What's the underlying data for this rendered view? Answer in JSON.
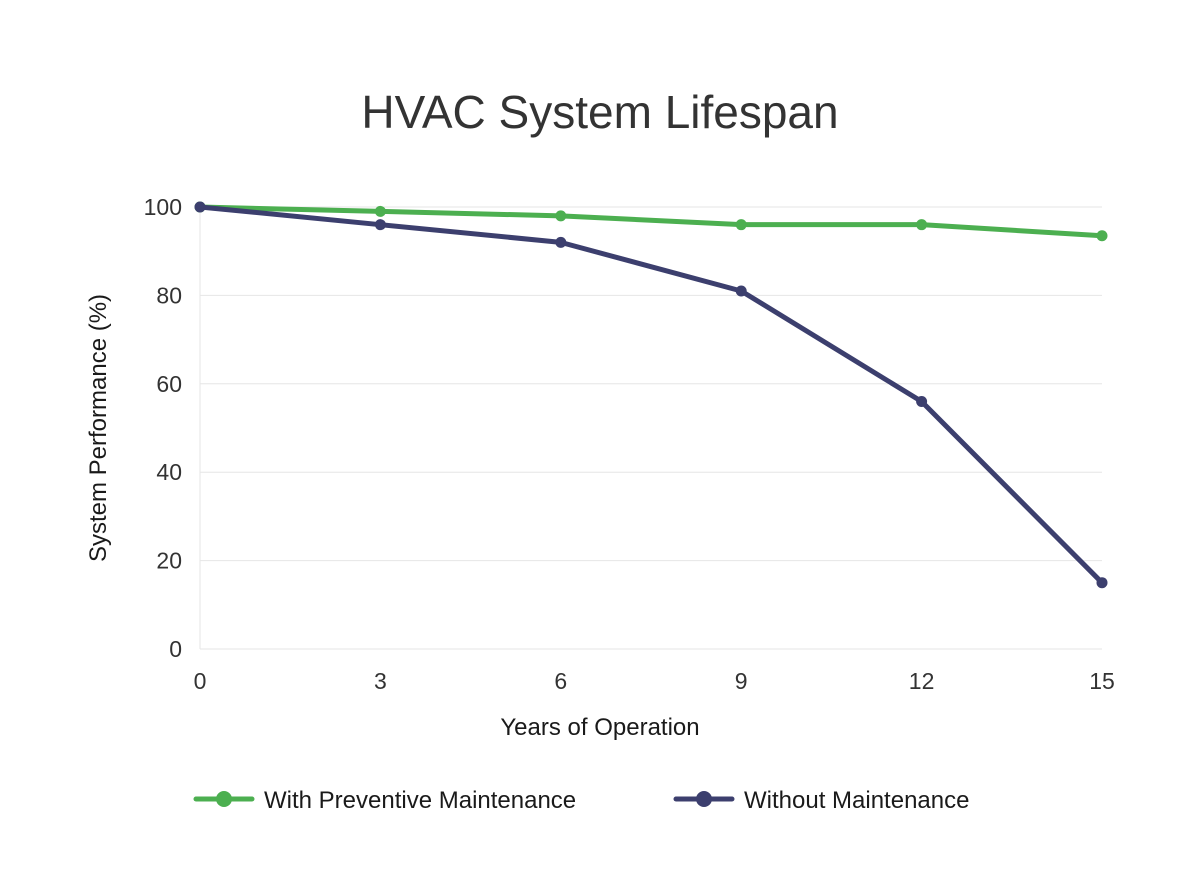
{
  "chart_data": {
    "type": "line",
    "title": "HVAC System Lifespan",
    "xlabel": "Years of Operation",
    "ylabel": "System Performance (%)",
    "x": [
      0,
      3,
      6,
      9,
      12,
      15
    ],
    "xlim": [
      0,
      15
    ],
    "ylim": [
      0,
      100
    ],
    "xticks": [
      "0",
      "3",
      "6",
      "9",
      "12",
      "15"
    ],
    "yticks": [
      "0",
      "20",
      "40",
      "60",
      "80",
      "100"
    ],
    "grid": "horizontal",
    "legend_position": "bottom",
    "series": [
      {
        "name": "With Preventive Maintenance",
        "color": "#4caf50",
        "values": [
          100,
          99,
          98,
          96,
          96,
          93.5
        ]
      },
      {
        "name": "Without Maintenance",
        "color": "#3c3f6e",
        "values": [
          100,
          96,
          92,
          81,
          56,
          15
        ]
      }
    ]
  }
}
